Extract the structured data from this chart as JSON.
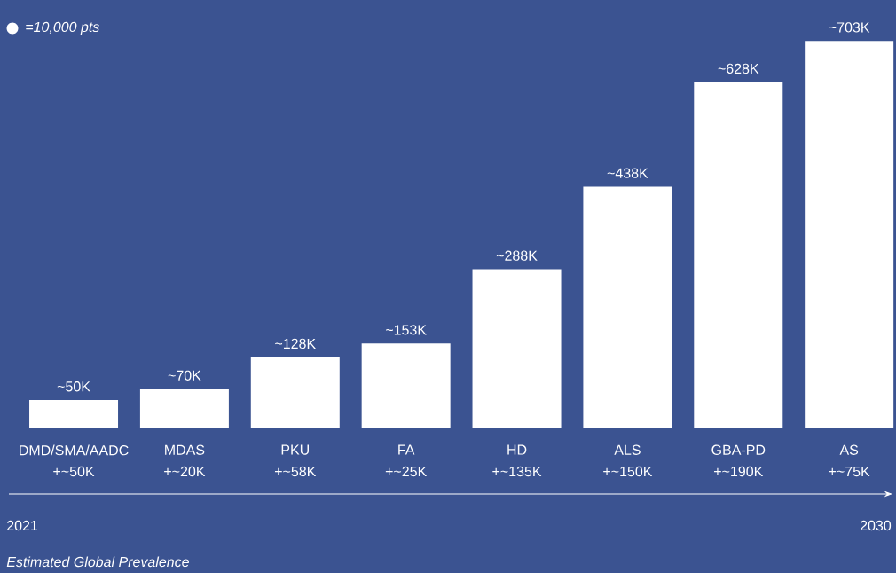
{
  "chart_data": {
    "type": "bar",
    "categories": [
      "DMD/SMA/AADC",
      "MDAS",
      "PKU",
      "FA",
      "HD",
      "ALS",
      "GBA-PD",
      "AS"
    ],
    "values": [
      50,
      70,
      128,
      153,
      288,
      438,
      628,
      703
    ],
    "value_labels": [
      "~50K",
      "~70K",
      "~128K",
      "~153K",
      "~288K",
      "~438K",
      "~628K",
      "~703K"
    ],
    "color": "#ffffff",
    "legend_title": "=10,000 pts",
    "tick_labels": "x",
    "annotations": [
      "+~50K",
      "+~20K",
      "+~58K",
      "+~25K",
      "+~135K",
      "+~150K",
      "+~190K",
      "+~75K",
      "2021",
      "2030",
      "Estimated Global Prevalence"
    ]
  }
}
